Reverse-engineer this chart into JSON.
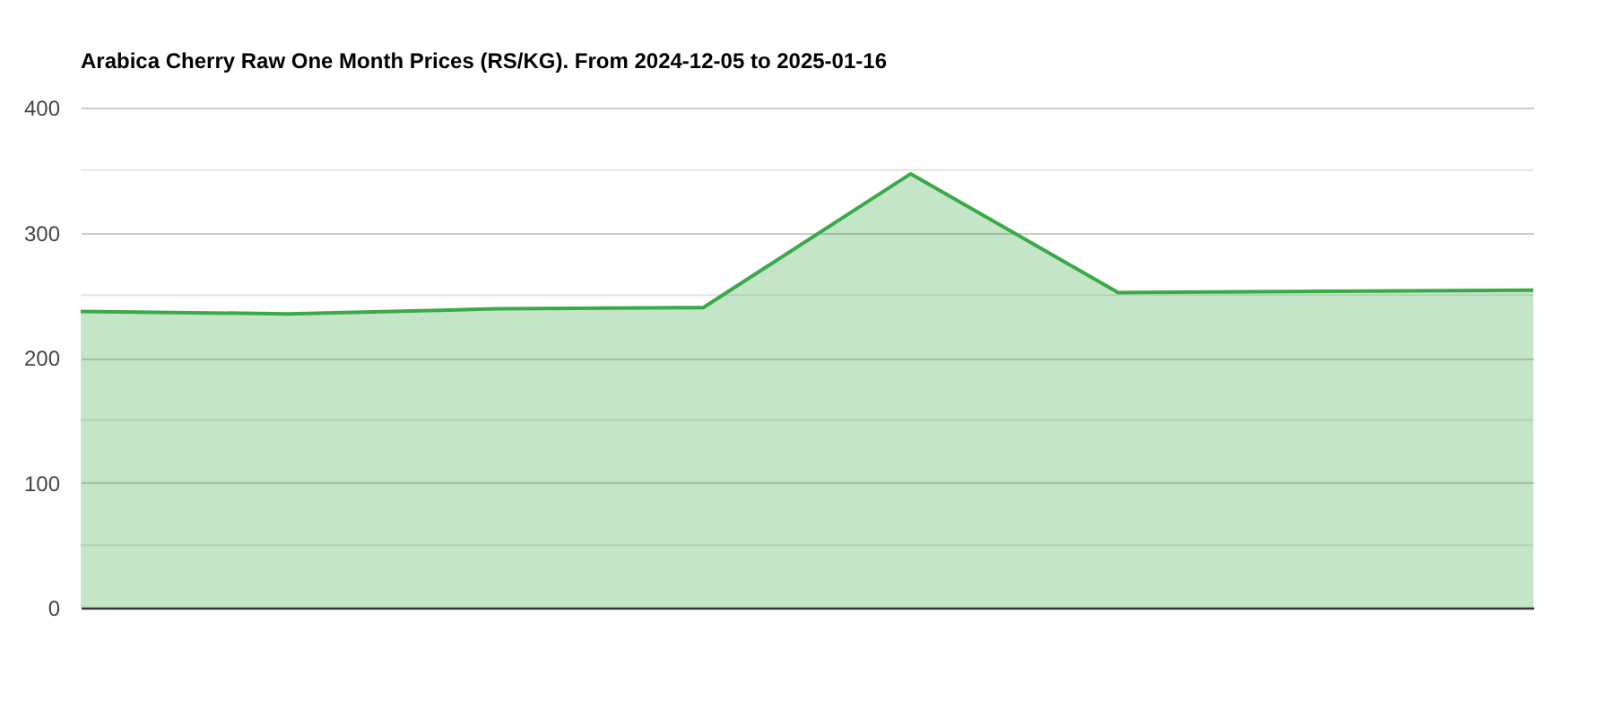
{
  "chart_data": {
    "type": "area",
    "title": "Arabica Cherry Raw One Month Prices (RS/KG). From 2024-12-05 to 2025-01-16",
    "categories": [
      null,
      null,
      null,
      null,
      null,
      null,
      null,
      null
    ],
    "series": [
      {
        "color": "#3aaa48",
        "values": [
          237,
          235,
          239,
          240,
          347,
          252,
          253,
          254
        ]
      }
    ],
    "ylim": [
      0,
      400
    ],
    "yticks": [
      0,
      {
        "value": 50,
        "label": null
      },
      100,
      {
        "value": 150,
        "label": null
      },
      200,
      {
        "value": 250,
        "label": null
      },
      300,
      {
        "value": 350,
        "label": null
      },
      400
    ],
    "grid": "y",
    "tick_labels": "y"
  }
}
